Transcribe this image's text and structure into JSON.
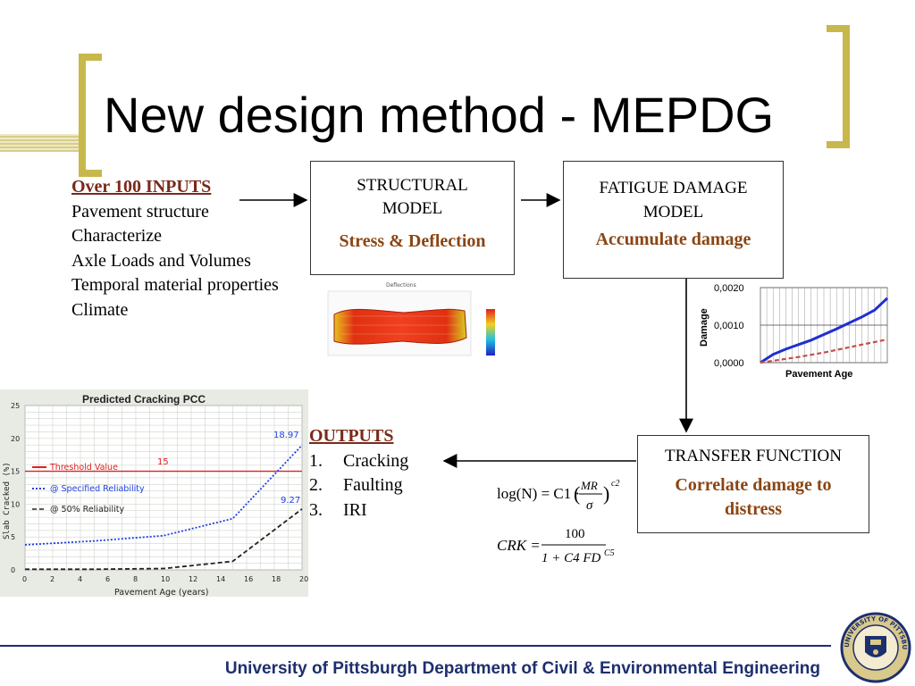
{
  "title": "New design method - MEPDG",
  "inputs": {
    "heading": "Over 100 INPUTS",
    "items": [
      "Pavement structure",
      "Characterize",
      "Axle Loads and Volumes",
      "Temporal material properties",
      "Climate"
    ]
  },
  "structural_box": {
    "line1": "STRUCTURAL",
    "line2": "MODEL",
    "sub": "Stress & Deflection"
  },
  "fatigue_box": {
    "line1": "FATIGUE DAMAGE",
    "line2": "MODEL",
    "sub": "Accumulate damage"
  },
  "transfer_box": {
    "line1": "TRANSFER FUNCTION",
    "sub1": "Correlate damage to",
    "sub2": "distress"
  },
  "outputs": {
    "heading": "OUTPUTS",
    "items": [
      {
        "num": "1.",
        "label": "Cracking"
      },
      {
        "num": "2.",
        "label": "Faulting"
      },
      {
        "num": "3.",
        "label": "IRI"
      }
    ]
  },
  "deflection_image": {
    "title": "Deflections"
  },
  "equations": {
    "eq1_left": "log(N) = C1 ·",
    "eq1_num": "MR",
    "eq1_den": "σ",
    "eq1_exp": "c2",
    "eq2_left": "CRK =",
    "eq2_num": "100",
    "eq2_den": "1 + C4 FD",
    "eq2_exp": "C5"
  },
  "footer": "University of Pittsburgh Department of Civil & Environmental Engineering",
  "logo": {
    "text": "UNIVERSITY OF PITTSBURGH"
  },
  "colors": {
    "accent_gold": "#c8b84c",
    "footer_blue": "#1e2f6e",
    "sub_brown": "#8b4513"
  },
  "chart_data": [
    {
      "type": "line",
      "title": "",
      "xlabel": "Pavement Age",
      "ylabel": "Damage",
      "yticks": [
        "0,0000",
        "0,0010",
        "0,0020"
      ],
      "ylim": [
        0,
        0.002
      ],
      "xlim": [
        0,
        20
      ],
      "grid": true,
      "series": [
        {
          "name": "",
          "color": "#1f2fd0",
          "style": "solid",
          "x": [
            0,
            2,
            4,
            6,
            8,
            10,
            12,
            14,
            16,
            18,
            20
          ],
          "values": [
            0.0,
            0.00022,
            0.00036,
            0.00048,
            0.0006,
            0.00075,
            0.0009,
            0.00106,
            0.00122,
            0.0014,
            0.00172
          ]
        },
        {
          "name": "",
          "color": "#c0504d",
          "style": "dashed",
          "x": [
            0,
            2,
            4,
            6,
            8,
            10,
            12,
            14,
            16,
            18,
            20
          ],
          "values": [
            0.0,
            5e-05,
            0.0001,
            0.00015,
            0.00021,
            0.00027,
            0.00034,
            0.00041,
            0.00048,
            0.00055,
            0.00062
          ]
        }
      ]
    },
    {
      "type": "line",
      "title": "Predicted Cracking PCC",
      "xlabel": "Pavement Age (years)",
      "ylabel": "Slab Cracked (%)",
      "xlim": [
        0,
        20
      ],
      "ylim": [
        0,
        25
      ],
      "xticks": [
        "0",
        "2",
        "4",
        "6",
        "8",
        "10",
        "12",
        "14",
        "16",
        "18",
        "20"
      ],
      "yticks": [
        "0",
        "5",
        "10",
        "15",
        "20",
        "25"
      ],
      "grid": true,
      "legend": "left",
      "annotations": [
        {
          "text": "15",
          "color": "#e02020"
        },
        {
          "text": "18.97",
          "color": "#2040e0"
        },
        {
          "text": "9.27",
          "color": "#2040e0"
        }
      ],
      "series": [
        {
          "name": "Threshold Value",
          "color": "#e02020",
          "style": "solid",
          "x": [
            0,
            20
          ],
          "values": [
            15,
            15
          ]
        },
        {
          "name": "@ Specified Reliability",
          "color": "#2040e0",
          "style": "dotted",
          "x": [
            0,
            5,
            10,
            15,
            20
          ],
          "values": [
            3.8,
            4.4,
            5.2,
            7.8,
            18.97
          ]
        },
        {
          "name": "@ 50% Reliability",
          "color": "#222222",
          "style": "dashed",
          "x": [
            0,
            5,
            10,
            15,
            20
          ],
          "values": [
            0.1,
            0.1,
            0.2,
            1.3,
            9.27
          ]
        }
      ]
    }
  ]
}
